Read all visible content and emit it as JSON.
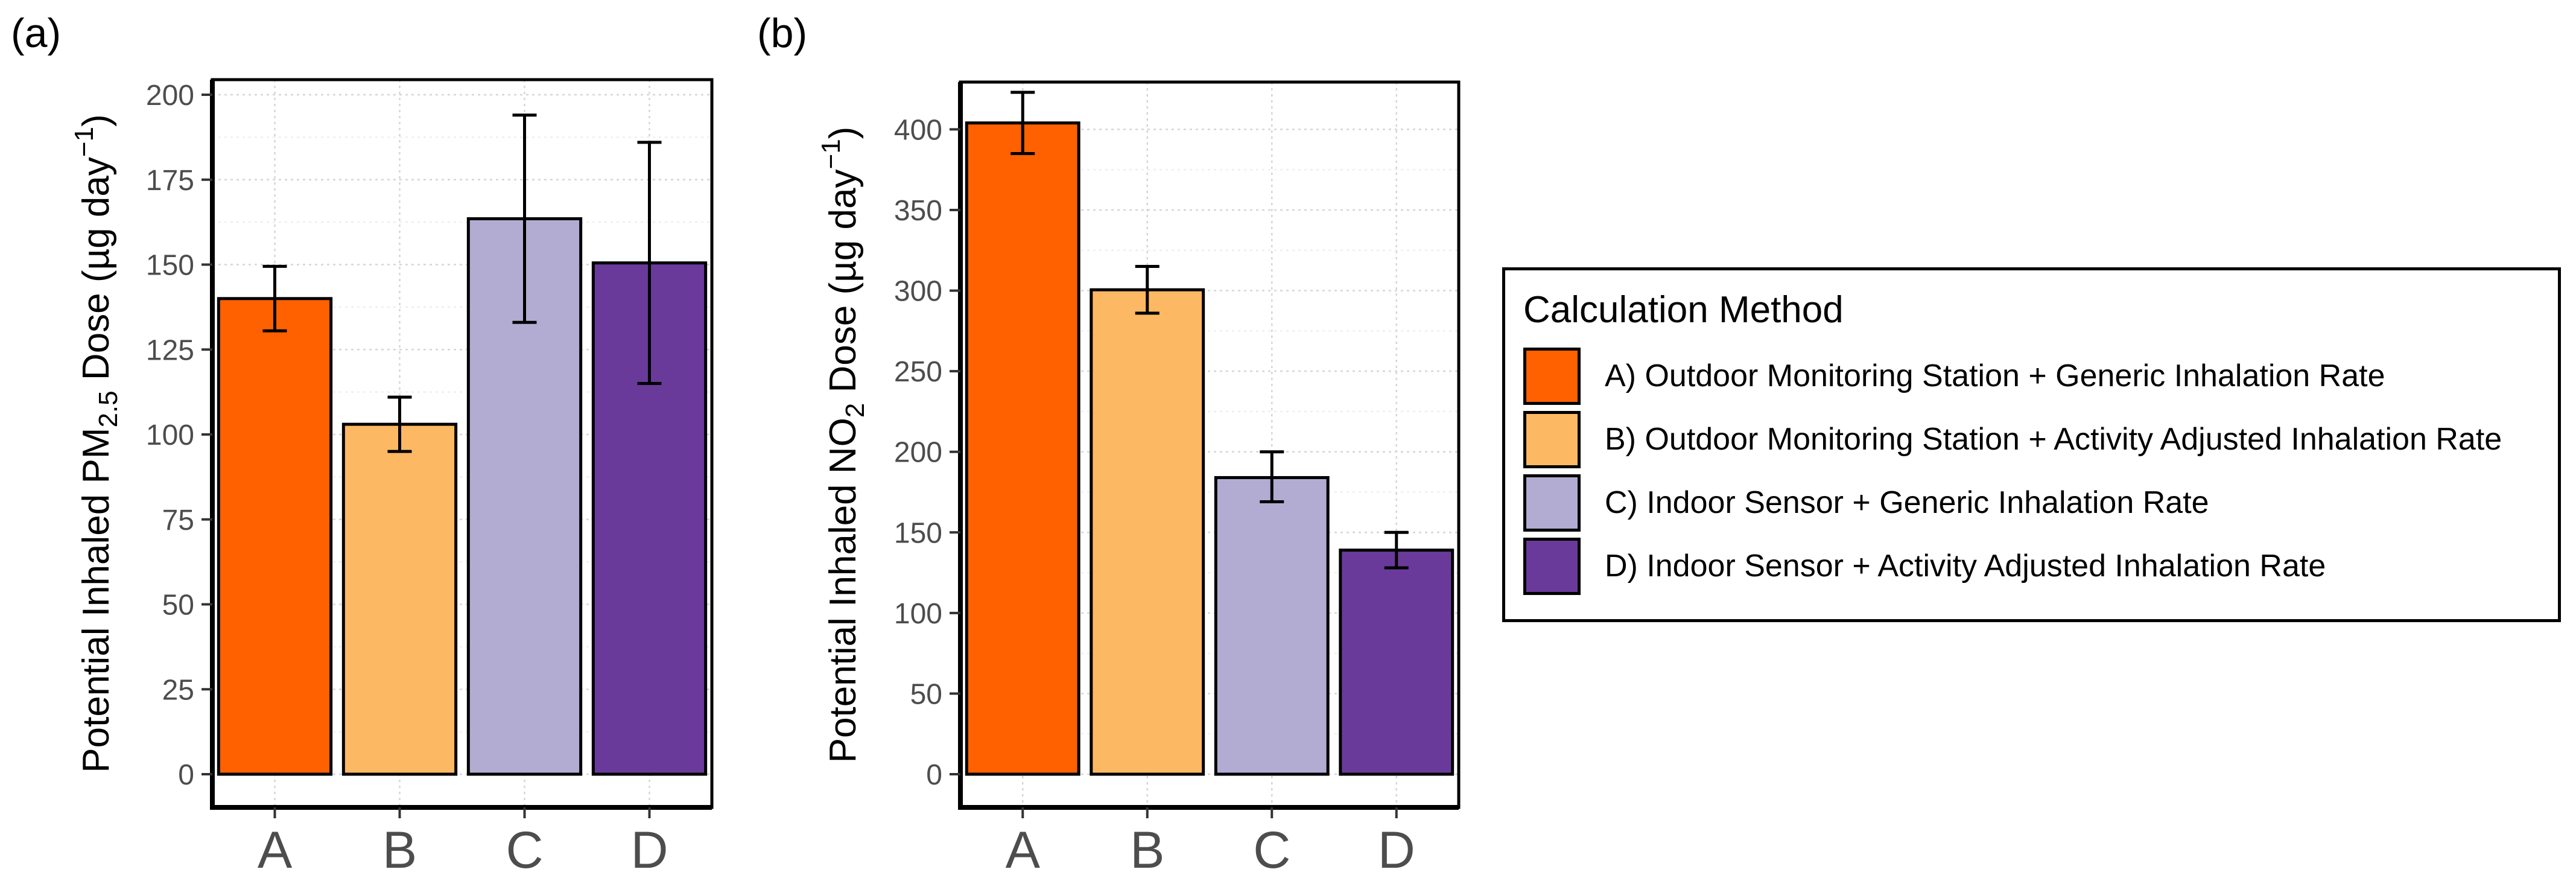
{
  "charts": [
    {
      "panel_label": "(a)",
      "ylabel_parts": [
        "Potential Inhaled PM",
        "2.5",
        " Dose (µg day",
        "−1",
        ")"
      ],
      "chart_data": {
        "type": "bar",
        "categories": [
          "A",
          "B",
          "C",
          "D"
        ],
        "values": [
          140,
          103,
          163.5,
          150.5
        ],
        "error_low": [
          130.5,
          95,
          133,
          115
        ],
        "error_high": [
          149.5,
          111,
          194,
          186
        ],
        "ylim": [
          0,
          200
        ],
        "yticks": [
          0,
          25,
          50,
          75,
          100,
          125,
          150,
          175,
          200
        ],
        "colors": [
          "#FF6000",
          "#FDB863",
          "#B2ABD2",
          "#6A3A9B"
        ],
        "xlabel": "",
        "grid": true
      }
    },
    {
      "panel_label": "(b)",
      "ylabel_parts": [
        "Potential Inhaled NO",
        "2",
        " Dose (µg day",
        "−1",
        ")"
      ],
      "chart_data": {
        "type": "bar",
        "categories": [
          "A",
          "B",
          "C",
          "D"
        ],
        "values": [
          404,
          300.5,
          184,
          139
        ],
        "error_low": [
          385,
          286,
          169,
          128
        ],
        "error_high": [
          423,
          315,
          200,
          150
        ],
        "ylim": [
          0,
          420
        ],
        "yticks": [
          0,
          50,
          100,
          150,
          200,
          250,
          300,
          350,
          400
        ],
        "colors": [
          "#FF6000",
          "#FDB863",
          "#B2ABD2",
          "#6A3A9B"
        ],
        "xlabel": "",
        "grid": true
      }
    }
  ],
  "legend": {
    "title": "Calculation Method",
    "position": "right",
    "items": [
      {
        "label": "A) Outdoor Monitoring Station + Generic Inhalation Rate",
        "color": "#FF6000"
      },
      {
        "label": "B) Outdoor Monitoring Station + Activity Adjusted Inhalation Rate",
        "color": "#FDB863"
      },
      {
        "label": "C) Indoor Sensor + Generic Inhalation Rate",
        "color": "#B2ABD2"
      },
      {
        "label": "D) Indoor Sensor + Activity Adjusted Inhalation Rate",
        "color": "#6A3A9B"
      }
    ]
  }
}
